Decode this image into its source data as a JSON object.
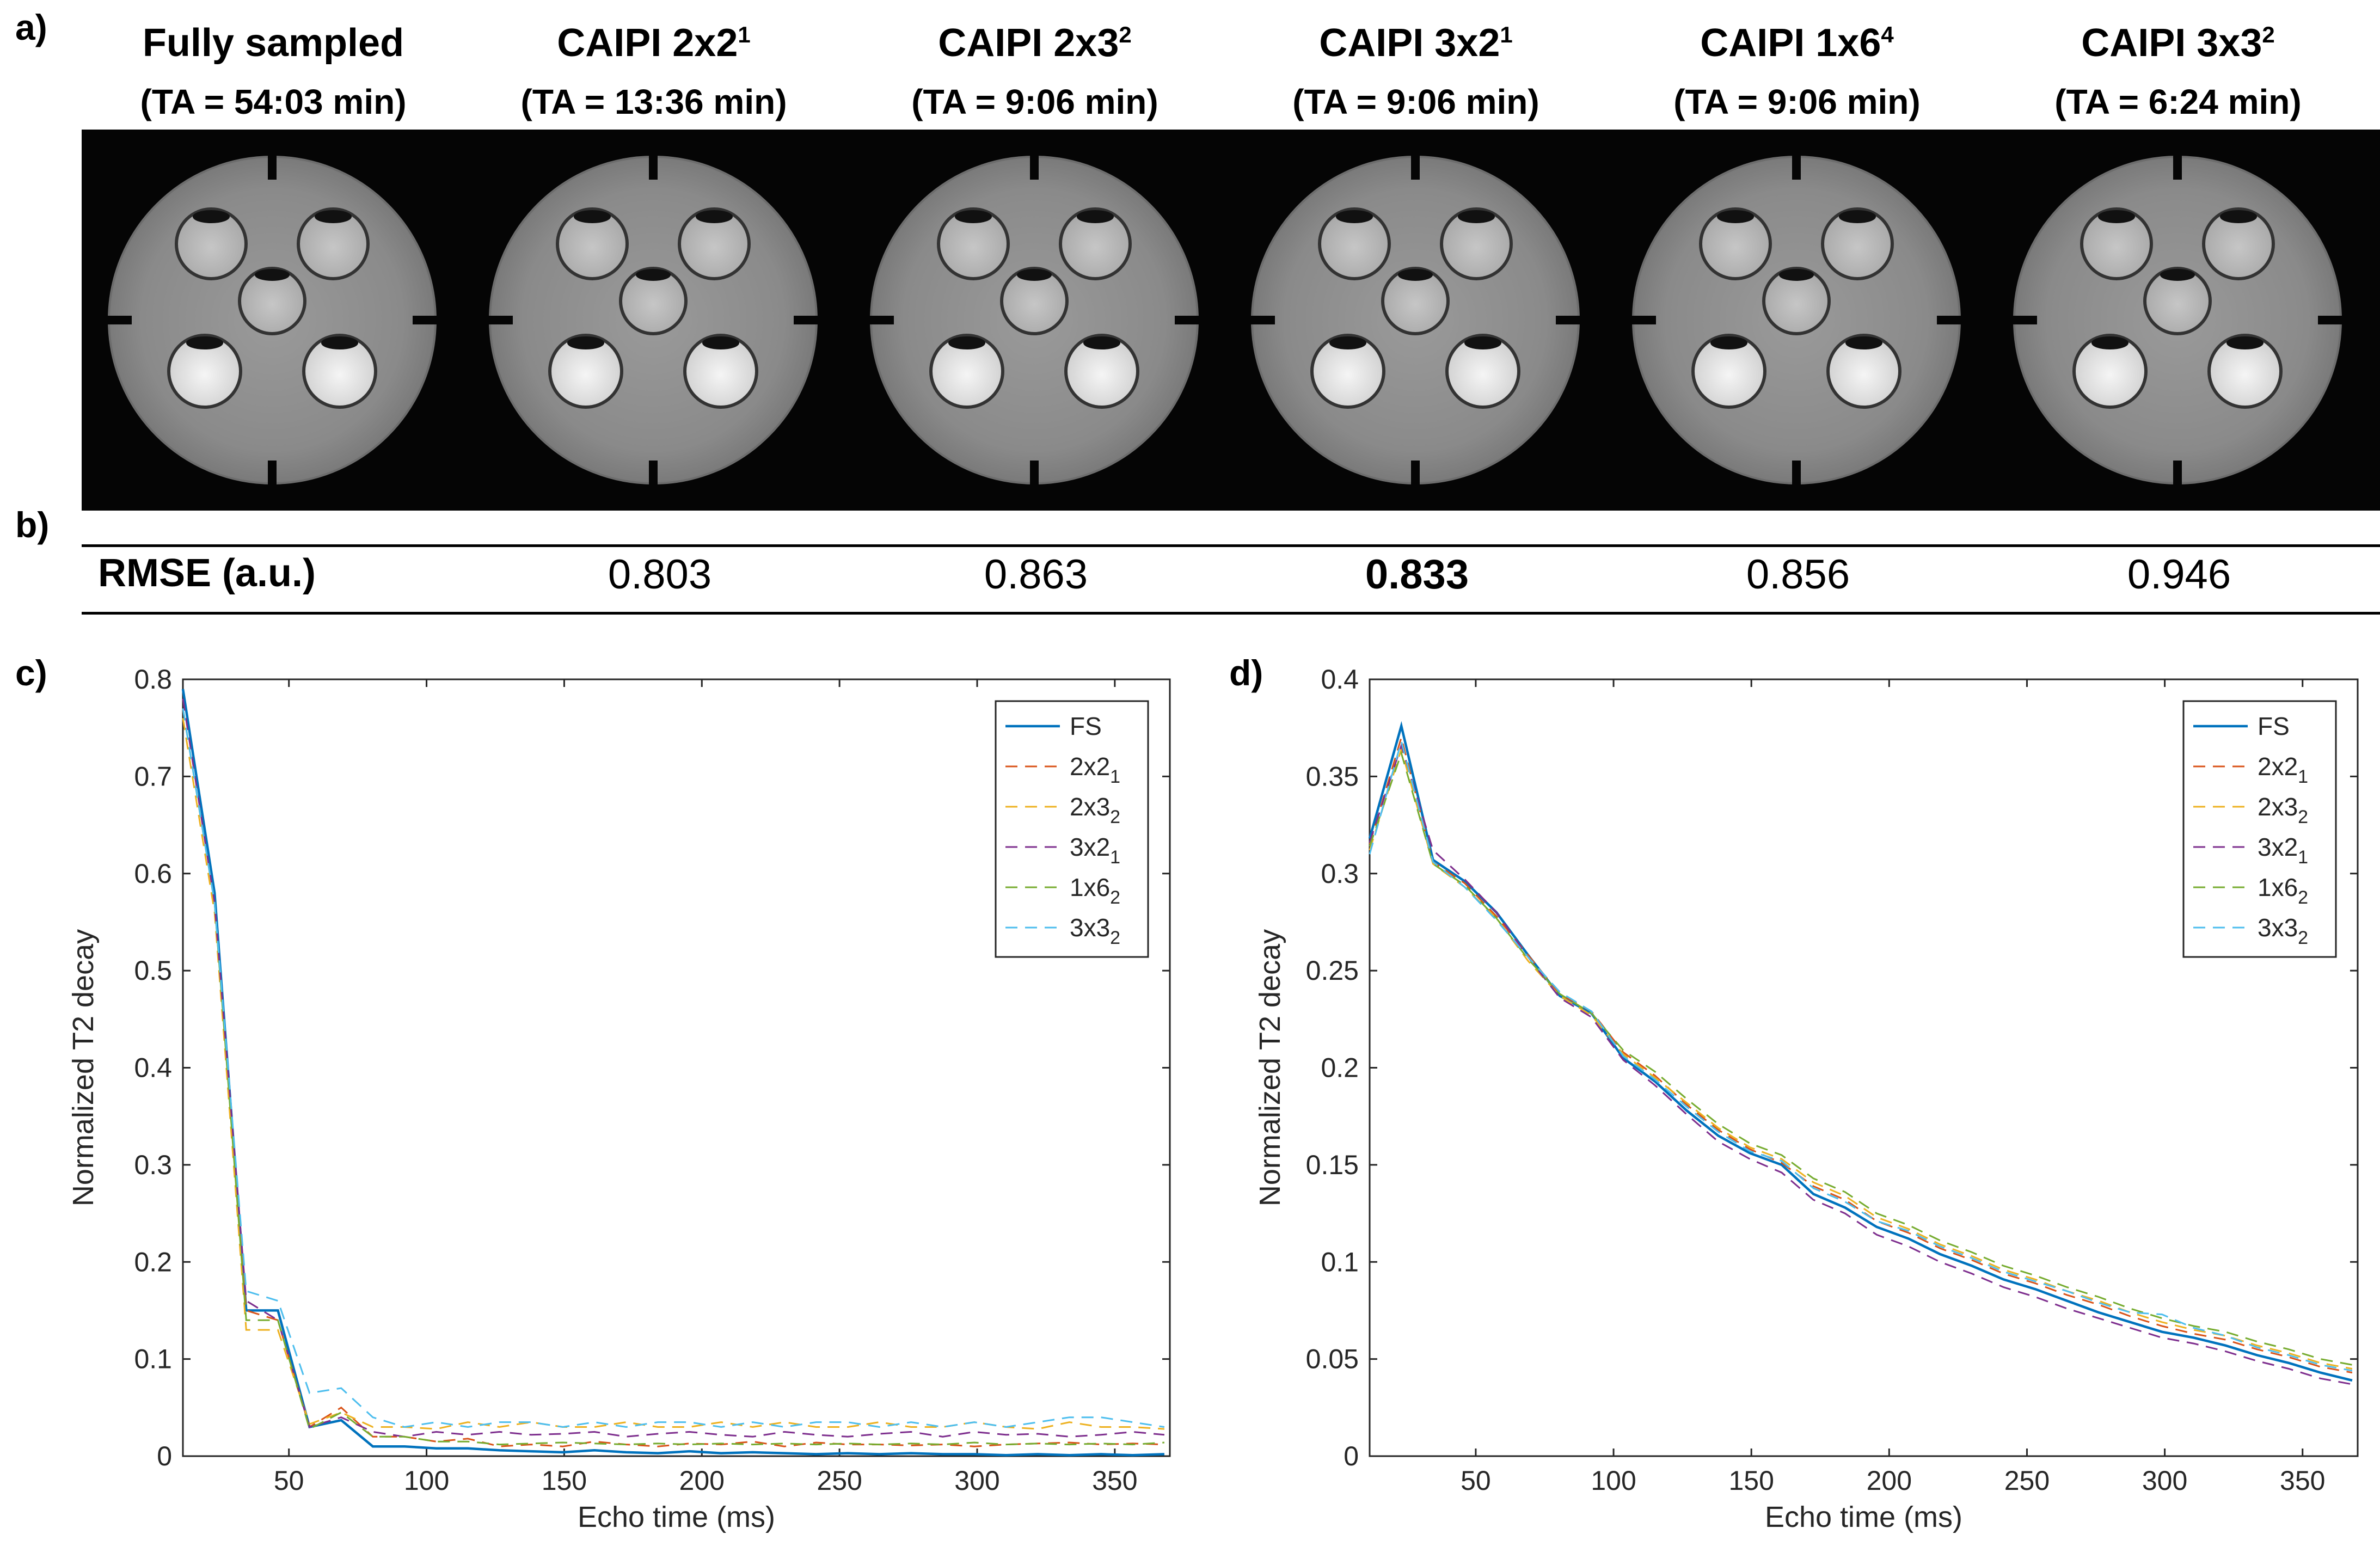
{
  "panels": {
    "a": "a)",
    "b": "b)",
    "c": "c)",
    "d": "d)"
  },
  "columns": [
    {
      "title": "Fully sampled",
      "sup": "",
      "ta": "(TA = 54:03 min)"
    },
    {
      "title": "CAIPI 2x2",
      "sup": "1",
      "ta": "(TA = 13:36 min)"
    },
    {
      "title": "CAIPI 2x3",
      "sup": "2",
      "ta": "(TA = 9:06 min)"
    },
    {
      "title": "CAIPI 3x2",
      "sup": "1",
      "ta": "(TA = 9:06 min)"
    },
    {
      "title": "CAIPI 1x6",
      "sup": "4",
      "ta": "(TA = 9:06 min)"
    },
    {
      "title": "CAIPI 3x3",
      "sup": "2",
      "ta": "(TA = 6:24 min)"
    }
  ],
  "rmse": {
    "label": "RMSE (a.u.)",
    "values": [
      "0.803",
      "0.863",
      "0.833",
      "0.856",
      "0.946"
    ],
    "bold_index": 2
  },
  "chart_data": [
    {
      "type": "line",
      "panel": "c",
      "xlabel": "Echo time (ms)",
      "ylabel": "Normalized T2 decay",
      "xlim": [
        11.5,
        370
      ],
      "ylim": [
        0,
        0.8
      ],
      "xticks": [
        50,
        100,
        150,
        200,
        250,
        300,
        350
      ],
      "yticks": [
        0,
        0.1,
        0.2,
        0.3,
        0.4,
        0.5,
        0.6,
        0.7,
        0.8
      ],
      "legend_position": "top-right",
      "x": [
        11.5,
        23,
        34.5,
        46,
        57.5,
        69,
        80.5,
        92,
        103.5,
        115,
        126.5,
        138,
        149.5,
        161,
        172.5,
        184,
        195.5,
        207,
        218.5,
        230,
        241.5,
        253,
        264.5,
        276,
        287.5,
        299,
        310.5,
        322,
        333.5,
        345,
        356.5,
        368
      ],
      "series": [
        {
          "name": "FS",
          "sub": "",
          "color": "#0072BD",
          "dashed": false,
          "values": [
            0.79,
            0.58,
            0.15,
            0.15,
            0.03,
            0.037,
            0.01,
            0.01,
            0.008,
            0.008,
            0.006,
            0.005,
            0.004,
            0.006,
            0.004,
            0.003,
            0.005,
            0.003,
            0.004,
            0.003,
            0.002,
            0.003,
            0.002,
            0.003,
            0.002,
            0.002,
            0.001,
            0.002,
            0.001,
            0.002,
            0.001,
            0.002
          ]
        },
        {
          "name": "2x2",
          "sub": "1",
          "color": "#D95319",
          "dashed": true,
          "values": [
            0.77,
            0.57,
            0.15,
            0.14,
            0.03,
            0.05,
            0.02,
            0.02,
            0.015,
            0.018,
            0.01,
            0.012,
            0.01,
            0.015,
            0.012,
            0.01,
            0.013,
            0.012,
            0.015,
            0.01,
            0.014,
            0.012,
            0.012,
            0.011,
            0.012,
            0.01,
            0.012,
            0.013,
            0.014,
            0.012,
            0.013,
            0.012
          ]
        },
        {
          "name": "2x3",
          "sub": "2",
          "color": "#EDB120",
          "dashed": true,
          "values": [
            0.76,
            0.56,
            0.13,
            0.13,
            0.033,
            0.045,
            0.03,
            0.03,
            0.028,
            0.035,
            0.03,
            0.035,
            0.03,
            0.03,
            0.035,
            0.03,
            0.03,
            0.035,
            0.03,
            0.035,
            0.03,
            0.03,
            0.035,
            0.03,
            0.03,
            0.035,
            0.03,
            0.028,
            0.035,
            0.03,
            0.03,
            0.028
          ]
        },
        {
          "name": "3x2",
          "sub": "1",
          "color": "#7E2F8E",
          "dashed": true,
          "values": [
            0.78,
            0.57,
            0.16,
            0.14,
            0.03,
            0.04,
            0.025,
            0.02,
            0.025,
            0.022,
            0.025,
            0.022,
            0.023,
            0.025,
            0.02,
            0.023,
            0.025,
            0.022,
            0.02,
            0.025,
            0.022,
            0.02,
            0.023,
            0.025,
            0.02,
            0.025,
            0.022,
            0.023,
            0.02,
            0.022,
            0.025,
            0.022
          ]
        },
        {
          "name": "1x6",
          "sub": "2",
          "color": "#77AC30",
          "dashed": true,
          "values": [
            0.77,
            0.57,
            0.14,
            0.14,
            0.028,
            0.045,
            0.02,
            0.02,
            0.015,
            0.015,
            0.012,
            0.013,
            0.014,
            0.013,
            0.012,
            0.013,
            0.012,
            0.013,
            0.012,
            0.013,
            0.012,
            0.013,
            0.012,
            0.013,
            0.012,
            0.014,
            0.012,
            0.013,
            0.012,
            0.013,
            0.012,
            0.014
          ]
        },
        {
          "name": "3x3",
          "sub": "2",
          "color": "#4DBEEE",
          "dashed": true,
          "values": [
            0.77,
            0.57,
            0.17,
            0.16,
            0.065,
            0.07,
            0.04,
            0.03,
            0.035,
            0.03,
            0.035,
            0.035,
            0.03,
            0.035,
            0.03,
            0.035,
            0.035,
            0.03,
            0.035,
            0.03,
            0.035,
            0.035,
            0.03,
            0.035,
            0.03,
            0.035,
            0.03,
            0.035,
            0.04,
            0.04,
            0.035,
            0.03
          ]
        }
      ]
    },
    {
      "type": "line",
      "panel": "d",
      "xlabel": "Echo time (ms)",
      "ylabel": "Normalized T2 decay",
      "xlim": [
        11.5,
        370
      ],
      "ylim": [
        0,
        0.4
      ],
      "xticks": [
        50,
        100,
        150,
        200,
        250,
        300,
        350
      ],
      "yticks": [
        0,
        0.05,
        0.1,
        0.15,
        0.2,
        0.25,
        0.3,
        0.35,
        0.4
      ],
      "legend_position": "top-right",
      "x": [
        11.5,
        23,
        34.5,
        46,
        57.5,
        69,
        80.5,
        92,
        103.5,
        115,
        126.5,
        138,
        149.5,
        161,
        172.5,
        184,
        195.5,
        207,
        218.5,
        230,
        241.5,
        253,
        264.5,
        276,
        287.5,
        299,
        310.5,
        322,
        333.5,
        345,
        356.5,
        368
      ],
      "series": [
        {
          "name": "FS",
          "sub": "",
          "color": "#0072BD",
          "dashed": false,
          "values": [
            0.318,
            0.376,
            0.307,
            0.296,
            0.28,
            0.258,
            0.237,
            0.228,
            0.205,
            0.193,
            0.178,
            0.165,
            0.156,
            0.15,
            0.135,
            0.128,
            0.118,
            0.112,
            0.104,
            0.098,
            0.091,
            0.086,
            0.08,
            0.074,
            0.069,
            0.064,
            0.061,
            0.057,
            0.052,
            0.048,
            0.043,
            0.039
          ]
        },
        {
          "name": "2x2",
          "sub": "1",
          "color": "#D95319",
          "dashed": true,
          "values": [
            0.315,
            0.37,
            0.306,
            0.295,
            0.278,
            0.258,
            0.238,
            0.229,
            0.208,
            0.196,
            0.181,
            0.168,
            0.158,
            0.151,
            0.139,
            0.132,
            0.121,
            0.115,
            0.107,
            0.101,
            0.094,
            0.089,
            0.083,
            0.078,
            0.072,
            0.067,
            0.063,
            0.06,
            0.055,
            0.051,
            0.046,
            0.043
          ]
        },
        {
          "name": "2x3",
          "sub": "2",
          "color": "#EDB120",
          "dashed": true,
          "values": [
            0.312,
            0.364,
            0.305,
            0.293,
            0.277,
            0.255,
            0.237,
            0.227,
            0.207,
            0.195,
            0.182,
            0.169,
            0.159,
            0.153,
            0.141,
            0.134,
            0.123,
            0.117,
            0.109,
            0.103,
            0.096,
            0.091,
            0.085,
            0.08,
            0.074,
            0.069,
            0.065,
            0.062,
            0.057,
            0.053,
            0.048,
            0.045
          ]
        },
        {
          "name": "3x2",
          "sub": "1",
          "color": "#7E2F8E",
          "dashed": true,
          "values": [
            0.316,
            0.366,
            0.312,
            0.297,
            0.28,
            0.257,
            0.236,
            0.226,
            0.204,
            0.191,
            0.176,
            0.162,
            0.153,
            0.146,
            0.132,
            0.125,
            0.114,
            0.108,
            0.1,
            0.094,
            0.087,
            0.082,
            0.076,
            0.071,
            0.066,
            0.061,
            0.058,
            0.054,
            0.049,
            0.045,
            0.04,
            0.037
          ]
        },
        {
          "name": "1x6",
          "sub": "2",
          "color": "#77AC30",
          "dashed": true,
          "values": [
            0.314,
            0.362,
            0.305,
            0.294,
            0.277,
            0.256,
            0.238,
            0.228,
            0.209,
            0.198,
            0.184,
            0.171,
            0.161,
            0.155,
            0.143,
            0.136,
            0.125,
            0.119,
            0.111,
            0.105,
            0.098,
            0.093,
            0.087,
            0.082,
            0.076,
            0.071,
            0.067,
            0.064,
            0.059,
            0.055,
            0.05,
            0.047
          ]
        },
        {
          "name": "3x3",
          "sub": "2",
          "color": "#4DBEEE",
          "dashed": true,
          "values": [
            0.31,
            0.368,
            0.306,
            0.293,
            0.276,
            0.257,
            0.239,
            0.229,
            0.206,
            0.194,
            0.18,
            0.167,
            0.157,
            0.152,
            0.138,
            0.131,
            0.121,
            0.116,
            0.108,
            0.102,
            0.095,
            0.09,
            0.085,
            0.079,
            0.074,
            0.073,
            0.066,
            0.062,
            0.056,
            0.052,
            0.047,
            0.044
          ]
        }
      ]
    }
  ]
}
